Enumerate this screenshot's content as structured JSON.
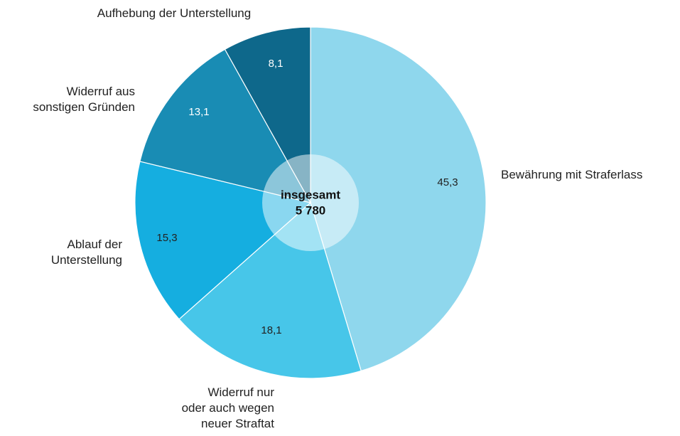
{
  "chart_data": {
    "type": "pie",
    "categories": [
      "Bewährung mit Straferlass",
      "Widerruf nur\noder auch wegen\nneuer Straftat",
      "Ablauf der\nUnterstellung",
      "Widerruf aus\nsonstigen Gründen",
      "Aufhebung der Unterstellung"
    ],
    "values": [
      45.3,
      18.1,
      15.3,
      13.1,
      8.1
    ],
    "value_labels": [
      "45,3",
      "18,1",
      "15,3",
      "13,1",
      "8,1"
    ],
    "colors": [
      "#8fd7ed",
      "#47c6e9",
      "#15aee0",
      "#198cb4",
      "#0e688b"
    ],
    "center_label": "insgesamt",
    "total": {
      "value": 5780,
      "label": "5 780"
    }
  }
}
